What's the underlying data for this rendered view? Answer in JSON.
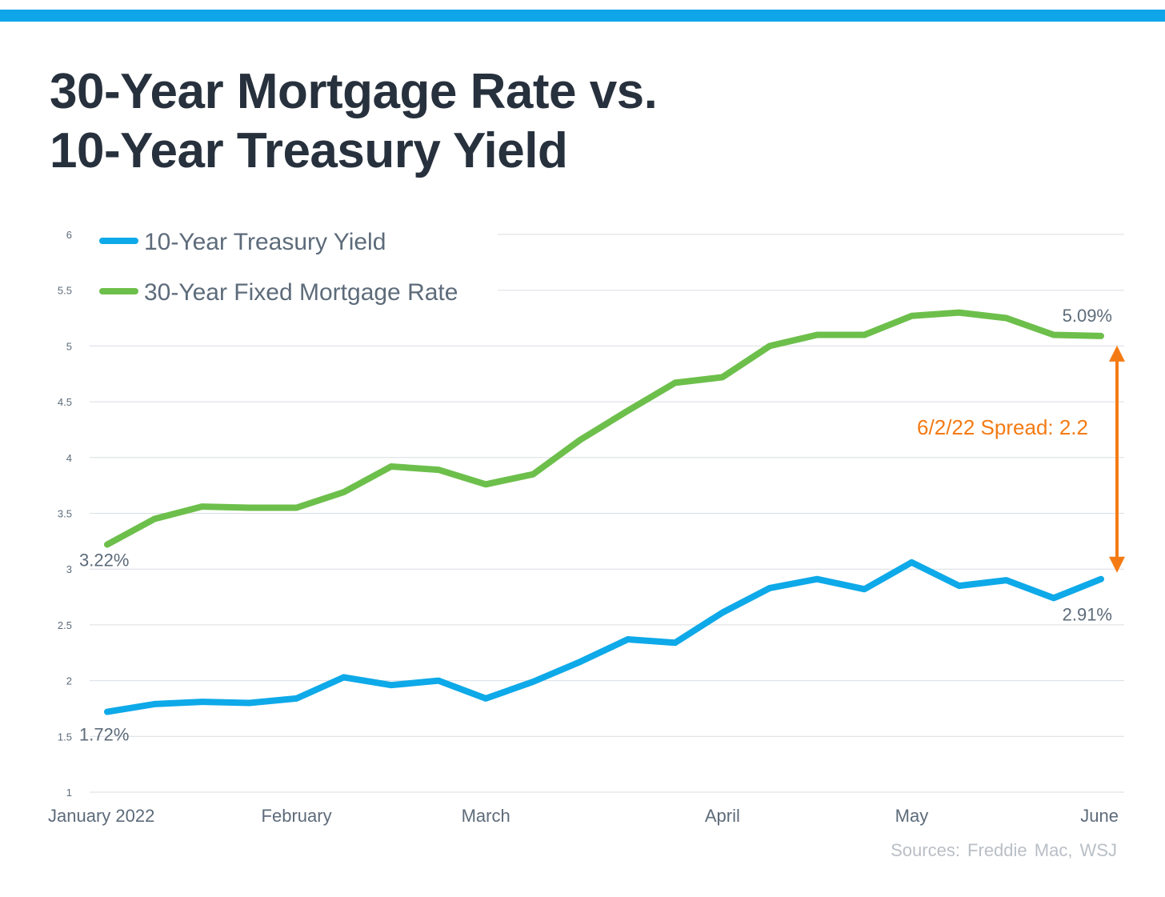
{
  "colors": {
    "top_bar": "#0ea5e9",
    "treasury": "#0ea9e8",
    "mortgage": "#6dbf4b",
    "spread": "#f47b14",
    "title": "#27313d",
    "axis_text": "#5d6b7a",
    "gridline": "#d9dde2"
  },
  "chart_data": {
    "type": "line",
    "title_lines": [
      "30-Year Mortgage Rate vs.",
      "10-Year Treasury Yield"
    ],
    "x_labels": [
      "January 2022",
      "February",
      "March",
      "April",
      "May",
      "June"
    ],
    "x_label_index": [
      0,
      4,
      8,
      13,
      17,
      21
    ],
    "ylim": [
      1,
      6
    ],
    "y_ticks": [
      "1",
      "1.5",
      "2",
      "2.5",
      "3",
      "3.5",
      "4",
      "4.5",
      "5",
      "5.5",
      "6"
    ],
    "y_tick_values": [
      1,
      1.5,
      2,
      2.5,
      3,
      3.5,
      4,
      4.5,
      5,
      5.5,
      6
    ],
    "series": [
      {
        "name": "10-Year Treasury Yield",
        "color_key": "treasury",
        "values": [
          1.72,
          1.79,
          1.81,
          1.8,
          1.84,
          2.03,
          1.96,
          2.0,
          1.84,
          1.99,
          2.17,
          2.37,
          2.34,
          2.61,
          2.83,
          2.91,
          2.82,
          3.06,
          2.85,
          2.9,
          2.74,
          2.91
        ]
      },
      {
        "name": "30-Year Fixed Mortgage Rate",
        "color_key": "mortgage",
        "values": [
          3.22,
          3.45,
          3.56,
          3.55,
          3.55,
          3.69,
          3.92,
          3.89,
          3.76,
          3.85,
          4.16,
          4.42,
          4.67,
          4.72,
          5.0,
          5.1,
          5.1,
          5.27,
          5.3,
          5.25,
          5.1,
          5.09
        ]
      }
    ],
    "annotations": {
      "mortgage_start": "3.22%",
      "mortgage_end": "5.09%",
      "treasury_start": "1.72%",
      "treasury_end": "2.91%",
      "spread_label": "6/2/22 Spread: 2.2",
      "spread_from": 2.91,
      "spread_to": 5.09
    },
    "legend": {
      "placement": "top-left",
      "items": [
        "10-Year Treasury Yield",
        "30-Year Fixed Mortgage Rate"
      ]
    },
    "grid": true
  },
  "source": "Sources: Freddie Mac, WSJ"
}
